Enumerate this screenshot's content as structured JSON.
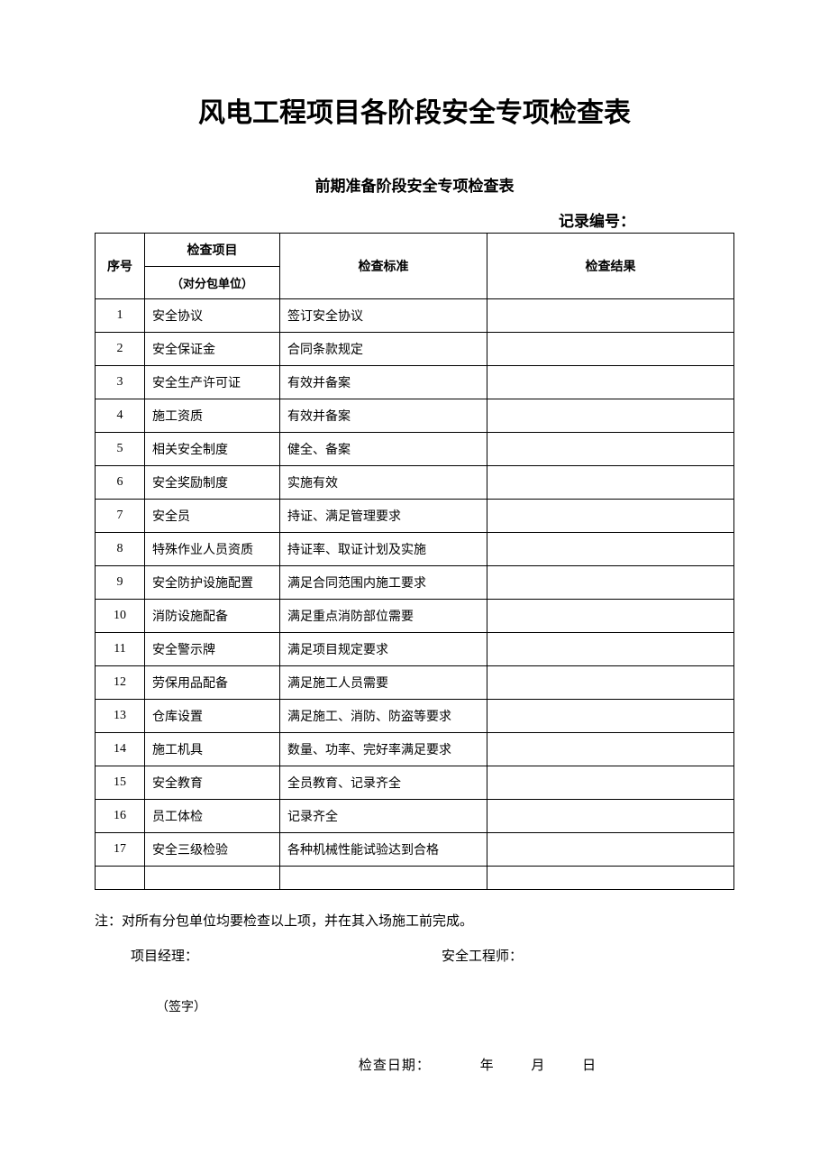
{
  "title": "风电工程项目各阶段安全专项检查表",
  "subtitle": "前期准备阶段安全专项检查表",
  "record_label": "记录编号：",
  "table": {
    "headers": {
      "seq": "序号",
      "item": "检查项目",
      "item_sub": "（对分包单位）",
      "standard": "检查标准",
      "result": "检查结果"
    },
    "rows": [
      {
        "seq": "1",
        "item": "安全协议",
        "standard": "签订安全协议",
        "result": ""
      },
      {
        "seq": "2",
        "item": "安全保证金",
        "standard": "合同条款规定",
        "result": ""
      },
      {
        "seq": "3",
        "item": "安全生产许可证",
        "standard": "有效并备案",
        "result": ""
      },
      {
        "seq": "4",
        "item": "施工资质",
        "standard": "有效并备案",
        "result": ""
      },
      {
        "seq": "5",
        "item": "相关安全制度",
        "standard": "健全、备案",
        "result": ""
      },
      {
        "seq": "6",
        "item": "安全奖励制度",
        "standard": "实施有效",
        "result": ""
      },
      {
        "seq": "7",
        "item": "安全员",
        "standard": "持证、满足管理要求",
        "result": ""
      },
      {
        "seq": "8",
        "item": "特殊作业人员资质",
        "standard": "持证率、取证计划及实施",
        "result": ""
      },
      {
        "seq": "9",
        "item": "安全防护设施配置",
        "standard": "满足合同范围内施工要求",
        "result": ""
      },
      {
        "seq": "10",
        "item": "消防设施配备",
        "standard": "满足重点消防部位需要",
        "result": ""
      },
      {
        "seq": "11",
        "item": "安全警示牌",
        "standard": "满足项目规定要求",
        "result": ""
      },
      {
        "seq": "12",
        "item": "劳保用品配备",
        "standard": "满足施工人员需要",
        "result": ""
      },
      {
        "seq": "13",
        "item": "仓库设置",
        "standard": "满足施工、消防、防盗等要求",
        "result": ""
      },
      {
        "seq": "14",
        "item": "施工机具",
        "standard": "数量、功率、完好率满足要求",
        "result": ""
      },
      {
        "seq": "15",
        "item": "安全教育",
        "standard": "全员教育、记录齐全",
        "result": ""
      },
      {
        "seq": "16",
        "item": "员工体检",
        "standard": "记录齐全",
        "result": ""
      },
      {
        "seq": "17",
        "item": "安全三级检验",
        "standard": "各种机械性能试验达到合格",
        "result": ""
      }
    ]
  },
  "note": "注：对所有分包单位均要检查以上项，并在其入场施工前完成。",
  "signatures": {
    "pm_label": "项目经理：",
    "se_label": "安全工程师：",
    "sig_note": "（签字）"
  },
  "date": {
    "label": "检查日期：",
    "year": "年",
    "month": "月",
    "day": "日"
  },
  "styling": {
    "background_color": "#ffffff",
    "text_color": "#000000",
    "border_color": "#000000",
    "title_fontsize": 30,
    "subtitle_fontsize": 17,
    "body_fontsize": 15,
    "table_fontsize": 14,
    "col_widths": {
      "seq": 55,
      "item": 150,
      "standard": 230
    }
  }
}
